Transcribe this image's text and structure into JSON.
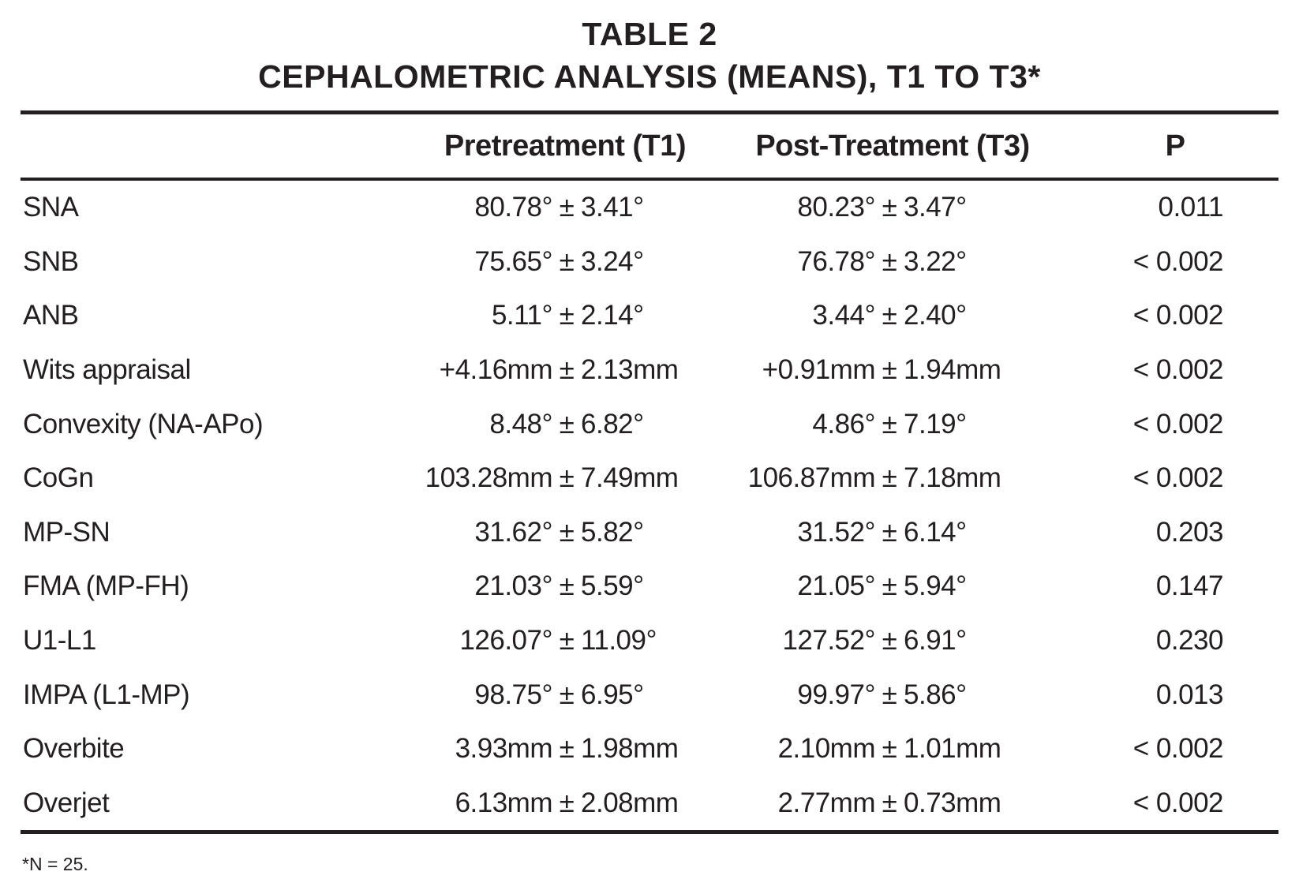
{
  "title": {
    "line1": "TABLE 2",
    "line2": "CEPHALOMETRIC ANALYSIS (MEANS), T1 TO T3*"
  },
  "columns": {
    "measure": "",
    "pre": "Pretreatment (T1)",
    "post": "Post-Treatment (T3)",
    "p": "P"
  },
  "pm_symbol": "±",
  "rows": [
    {
      "label": "SNA",
      "pre_mean": "80.78°",
      "pre_sd": "3.41°",
      "post_mean": "80.23°",
      "post_sd": "3.47°",
      "p": "0.011"
    },
    {
      "label": "SNB",
      "pre_mean": "75.65°",
      "pre_sd": "3.24°",
      "post_mean": "76.78°",
      "post_sd": "3.22°",
      "p": "< 0.002"
    },
    {
      "label": "ANB",
      "pre_mean": "5.11°",
      "pre_sd": "2.14°",
      "post_mean": "3.44°",
      "post_sd": "2.40°",
      "p": "< 0.002"
    },
    {
      "label": "Wits appraisal",
      "pre_mean": "+4.16mm",
      "pre_sd": "2.13mm",
      "post_mean": "+0.91mm",
      "post_sd": "1.94mm",
      "p": "< 0.002"
    },
    {
      "label": "Convexity (NA-APo)",
      "pre_mean": "8.48°",
      "pre_sd": "6.82°",
      "post_mean": "4.86°",
      "post_sd": "7.19°",
      "p": "< 0.002"
    },
    {
      "label": "CoGn",
      "pre_mean": "103.28mm",
      "pre_sd": "7.49mm",
      "post_mean": "106.87mm",
      "post_sd": "7.18mm",
      "p": "< 0.002"
    },
    {
      "label": "MP-SN",
      "pre_mean": "31.62°",
      "pre_sd": "5.82°",
      "post_mean": "31.52°",
      "post_sd": "6.14°",
      "p": "0.203"
    },
    {
      "label": "FMA (MP-FH)",
      "pre_mean": "21.03°",
      "pre_sd": "5.59°",
      "post_mean": "21.05°",
      "post_sd": "5.94°",
      "p": "0.147"
    },
    {
      "label": "U1-L1",
      "pre_mean": "126.07°",
      "pre_sd": "11.09°",
      "post_mean": "127.52°",
      "post_sd": "6.91°",
      "p": "0.230"
    },
    {
      "label": "IMPA (L1-MP)",
      "pre_mean": "98.75°",
      "pre_sd": "6.95°",
      "post_mean": "99.97°",
      "post_sd": "5.86°",
      "p": "0.013"
    },
    {
      "label": "Overbite",
      "pre_mean": "3.93mm",
      "pre_sd": "1.98mm",
      "post_mean": "2.10mm",
      "post_sd": "1.01mm",
      "p": "< 0.002"
    },
    {
      "label": "Overjet",
      "pre_mean": "6.13mm",
      "pre_sd": "2.08mm",
      "post_mean": "2.77mm",
      "post_sd": "0.73mm",
      "p": "< 0.002"
    }
  ],
  "footnote": "*N = 25.",
  "colors": {
    "text": "#231f20",
    "rule": "#231f20",
    "background": "#ffffff"
  }
}
